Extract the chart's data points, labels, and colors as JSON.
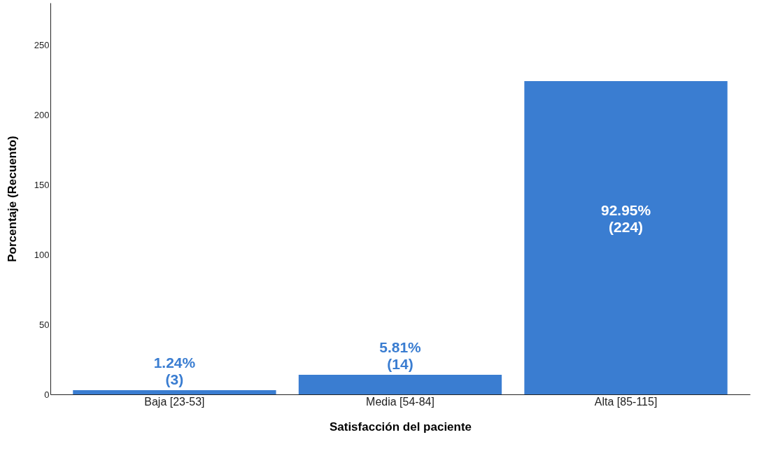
{
  "chart_data": {
    "type": "bar",
    "xlabel": "Satisfacción del paciente",
    "ylabel": "Porcentaje (Recuento)",
    "categories": [
      "Baja [23-53]",
      "Media [54-84]",
      "Alta [85-115]"
    ],
    "values": [
      3,
      14,
      224
    ],
    "color": "#3a7dd1",
    "value_labels": [
      "1.24%\n(3)",
      "5.81%\n(14)",
      "92.95%\n(224)"
    ],
    "ylim": [
      0,
      280
    ],
    "yticks": [
      0,
      50,
      100,
      150,
      200,
      250
    ],
    "grid": false
  }
}
